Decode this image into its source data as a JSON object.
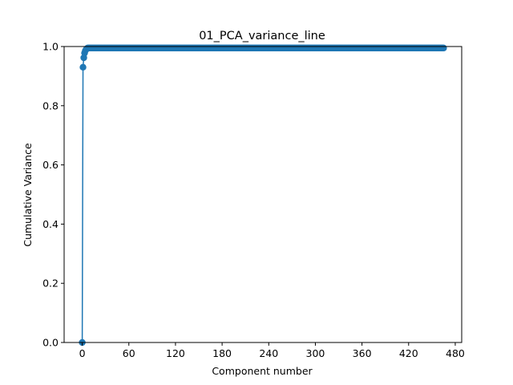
{
  "chart_data": {
    "type": "line",
    "title": "01_PCA_variance_line",
    "xlabel": "Component number",
    "ylabel": "Cumulative Variance",
    "xlim": [
      -23.3,
      488.3
    ],
    "ylim": [
      0,
      1
    ],
    "xticks": [
      0,
      60,
      120,
      180,
      240,
      300,
      360,
      420,
      480
    ],
    "yticks": [
      0.0,
      0.2,
      0.4,
      0.6,
      0.8,
      1.0
    ],
    "ytick_labels": [
      "0.0",
      "0.2",
      "0.4",
      "0.6",
      "0.8",
      "1.0"
    ],
    "grid": false,
    "series": [
      {
        "color": "#1f77b4",
        "marker": "circle",
        "x_start": 0,
        "x_end": 465,
        "head_values": [
          0.0,
          0.93,
          0.962,
          0.978,
          0.986,
          0.99,
          0.993
        ],
        "plateau_value": 0.995
      }
    ]
  }
}
